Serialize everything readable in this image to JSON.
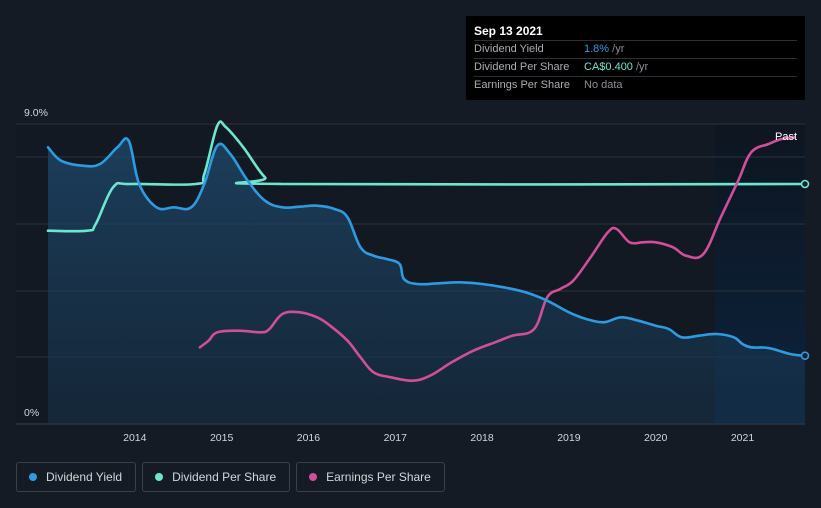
{
  "chart_data": {
    "type": "line",
    "y_axis": {
      "top_label": "9.0%",
      "bottom_label": "0%",
      "ylim": [
        0,
        9.0
      ]
    },
    "x_axis": {
      "ticks": [
        "2014",
        "2015",
        "2016",
        "2017",
        "2018",
        "2019",
        "2020",
        "2021"
      ],
      "xlim": [
        2013.0,
        2021.72
      ]
    },
    "forecast_region_label": "Past",
    "series": [
      {
        "name": "Dividend Yield",
        "color": "#2d9be0",
        "points": [
          [
            2013.0,
            8.3
          ],
          [
            2013.15,
            7.9
          ],
          [
            2013.4,
            7.75
          ],
          [
            2013.6,
            7.8
          ],
          [
            2013.8,
            8.3
          ],
          [
            2013.93,
            8.5
          ],
          [
            2014.05,
            7.2
          ],
          [
            2014.25,
            6.5
          ],
          [
            2014.45,
            6.5
          ],
          [
            2014.65,
            6.5
          ],
          [
            2014.8,
            7.2
          ],
          [
            2014.95,
            8.35
          ],
          [
            2015.1,
            8.1
          ],
          [
            2015.3,
            7.3
          ],
          [
            2015.5,
            6.7
          ],
          [
            2015.7,
            6.5
          ],
          [
            2015.9,
            6.52
          ],
          [
            2016.1,
            6.55
          ],
          [
            2016.3,
            6.45
          ],
          [
            2016.45,
            6.2
          ],
          [
            2016.6,
            5.3
          ],
          [
            2016.75,
            5.05
          ],
          [
            2016.9,
            4.95
          ],
          [
            2017.05,
            4.8
          ],
          [
            2017.1,
            4.35
          ],
          [
            2017.25,
            4.2
          ],
          [
            2017.5,
            4.22
          ],
          [
            2017.75,
            4.25
          ],
          [
            2018.0,
            4.2
          ],
          [
            2018.25,
            4.1
          ],
          [
            2018.5,
            3.95
          ],
          [
            2018.75,
            3.7
          ],
          [
            2019.0,
            3.35
          ],
          [
            2019.2,
            3.15
          ],
          [
            2019.4,
            3.05
          ],
          [
            2019.6,
            3.2
          ],
          [
            2019.8,
            3.1
          ],
          [
            2020.0,
            2.95
          ],
          [
            2020.15,
            2.85
          ],
          [
            2020.3,
            2.6
          ],
          [
            2020.5,
            2.65
          ],
          [
            2020.7,
            2.7
          ],
          [
            2020.9,
            2.6
          ],
          [
            2021.0,
            2.4
          ],
          [
            2021.1,
            2.3
          ],
          [
            2021.3,
            2.28
          ],
          [
            2021.55,
            2.1
          ],
          [
            2021.72,
            2.05
          ]
        ]
      },
      {
        "name": "Dividend Per Share",
        "color": "#6de6cf",
        "points": [
          [
            2013.0,
            5.8
          ],
          [
            2013.45,
            5.8
          ],
          [
            2013.55,
            6.0
          ],
          [
            2013.75,
            7.1
          ],
          [
            2013.95,
            7.2
          ],
          [
            2014.7,
            7.2
          ],
          [
            2014.8,
            7.5
          ],
          [
            2014.95,
            8.95
          ],
          [
            2015.05,
            8.9
          ],
          [
            2015.25,
            8.3
          ],
          [
            2015.5,
            7.4
          ],
          [
            2015.7,
            7.2
          ],
          [
            2021.72,
            7.2
          ]
        ]
      },
      {
        "name": "Earnings Per Share",
        "color": "#d14e9a",
        "points": [
          [
            2014.75,
            2.3
          ],
          [
            2014.85,
            2.5
          ],
          [
            2014.95,
            2.75
          ],
          [
            2015.2,
            2.8
          ],
          [
            2015.45,
            2.75
          ],
          [
            2015.55,
            2.85
          ],
          [
            2015.7,
            3.3
          ],
          [
            2015.9,
            3.35
          ],
          [
            2016.1,
            3.2
          ],
          [
            2016.25,
            2.95
          ],
          [
            2016.45,
            2.5
          ],
          [
            2016.6,
            2.0
          ],
          [
            2016.75,
            1.55
          ],
          [
            2016.95,
            1.4
          ],
          [
            2017.2,
            1.3
          ],
          [
            2017.4,
            1.45
          ],
          [
            2017.65,
            1.85
          ],
          [
            2017.9,
            2.2
          ],
          [
            2018.15,
            2.45
          ],
          [
            2018.35,
            2.65
          ],
          [
            2018.6,
            2.85
          ],
          [
            2018.75,
            3.8
          ],
          [
            2018.9,
            4.05
          ],
          [
            2019.05,
            4.3
          ],
          [
            2019.25,
            5.0
          ],
          [
            2019.45,
            5.75
          ],
          [
            2019.55,
            5.85
          ],
          [
            2019.7,
            5.45
          ],
          [
            2019.85,
            5.45
          ],
          [
            2020.0,
            5.45
          ],
          [
            2020.2,
            5.3
          ],
          [
            2020.35,
            5.05
          ],
          [
            2020.55,
            5.1
          ],
          [
            2020.75,
            6.2
          ],
          [
            2020.95,
            7.3
          ],
          [
            2021.1,
            8.15
          ],
          [
            2021.3,
            8.4
          ],
          [
            2021.45,
            8.55
          ],
          [
            2021.6,
            8.6
          ]
        ]
      }
    ],
    "tooltip": {
      "date": "Sep 13 2021",
      "rows": [
        {
          "label": "Dividend Yield",
          "value": "1.8%",
          "unit": " /yr",
          "color": "#2d9be0"
        },
        {
          "label": "Dividend Per Share",
          "value": "CA$0.400",
          "unit": " /yr",
          "color": "#6de6cf"
        },
        {
          "label": "Earnings Per Share",
          "value": "No data",
          "unit": "",
          "color": "#8a8f96"
        }
      ]
    },
    "legend": [
      {
        "label": "Dividend Yield",
        "color": "#2d9be0"
      },
      {
        "label": "Dividend Per Share",
        "color": "#6de6cf"
      },
      {
        "label": "Earnings Per Share",
        "color": "#d14e9a"
      }
    ]
  }
}
